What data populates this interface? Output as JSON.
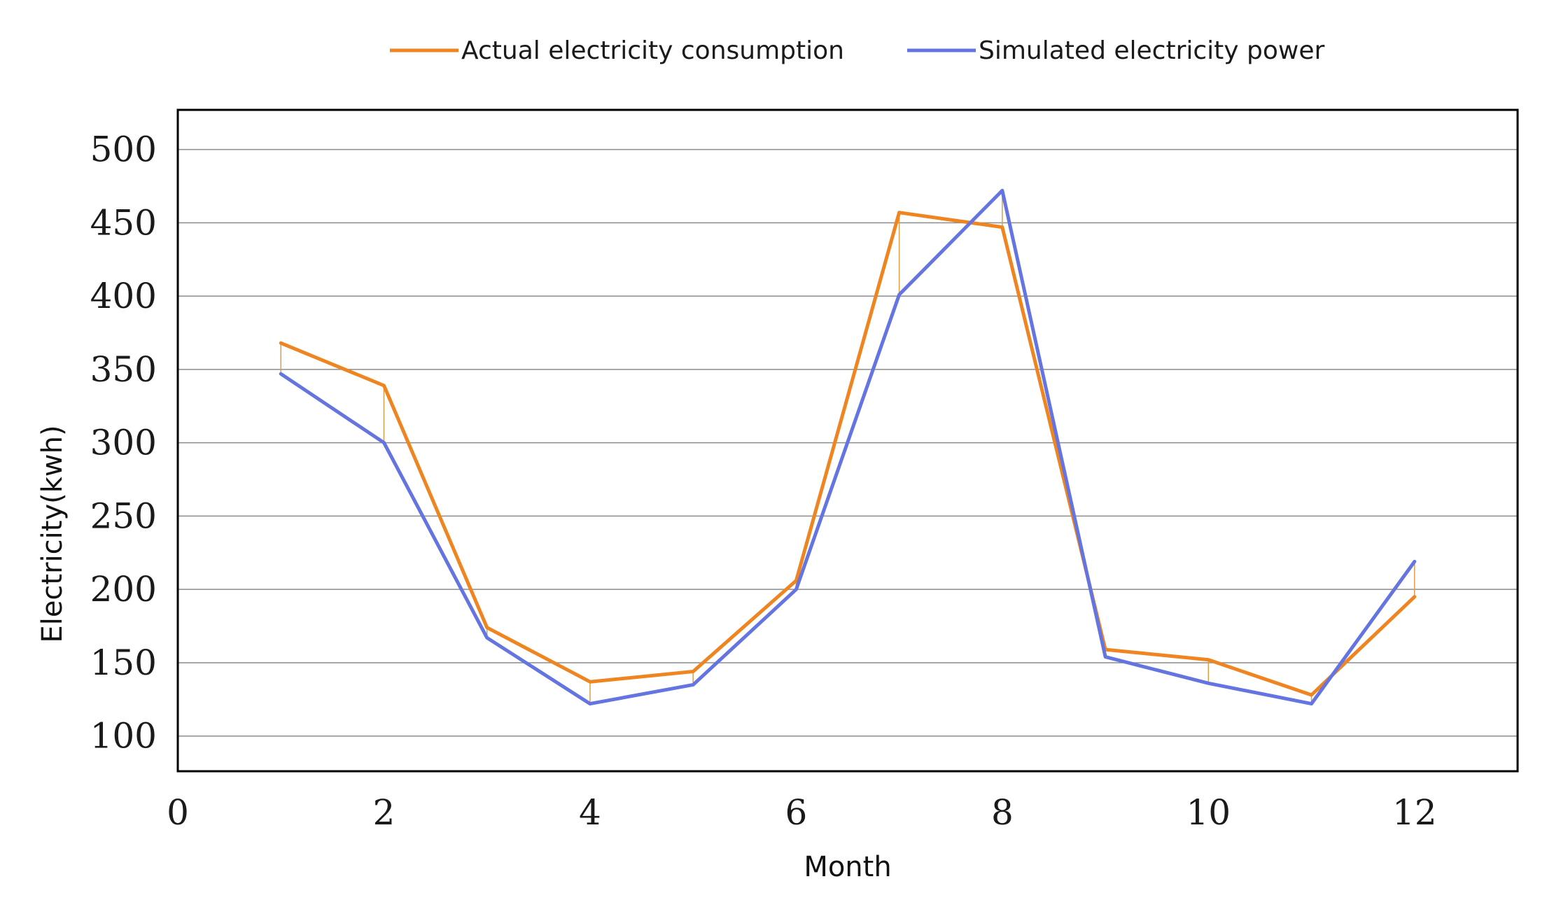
{
  "chart_data": {
    "type": "line",
    "title": "",
    "xlabel": "Month",
    "ylabel": "Electricity(kwh)",
    "xlim": [
      0,
      13
    ],
    "ylim": [
      76,
      527
    ],
    "xticks": [
      0,
      2,
      4,
      6,
      8,
      10,
      12
    ],
    "yticks": [
      100,
      150,
      200,
      250,
      300,
      350,
      400,
      450,
      500
    ],
    "grid": "horizontal",
    "legend_position": "top",
    "x": [
      1,
      2,
      3,
      4,
      5,
      6,
      7,
      8,
      9,
      10,
      11,
      12
    ],
    "series": [
      {
        "name": "Actual electricity consumption",
        "color": "#ee8520",
        "values": [
          368,
          339,
          174,
          137,
          144,
          206,
          457,
          447,
          159,
          152,
          128,
          195
        ]
      },
      {
        "name": "Simulated electricity power",
        "color": "#6474e0",
        "values": [
          347,
          300,
          167,
          122,
          135,
          200,
          401,
          472,
          154,
          136,
          122,
          219
        ]
      }
    ],
    "annotations": "thin vertical lines connect actual and simulated values at each month"
  }
}
